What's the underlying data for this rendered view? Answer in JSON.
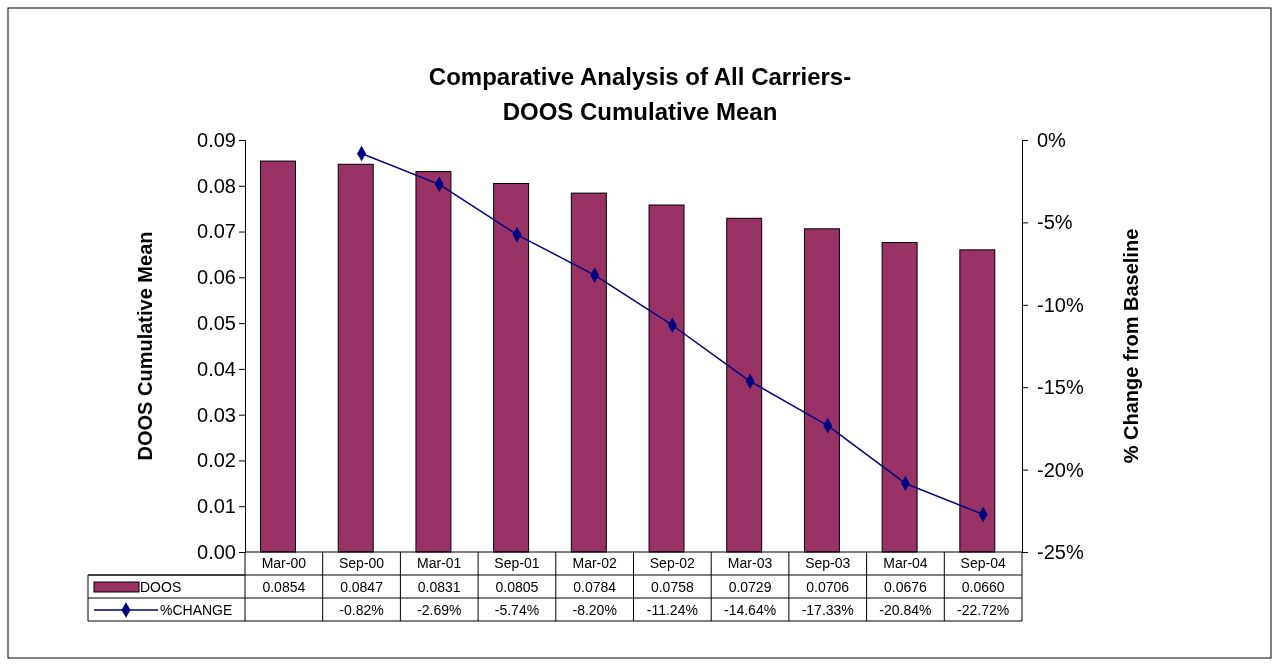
{
  "chart_data": {
    "type": "bar",
    "title": "Comparative Analysis of All Carriers-\nDOOS Cumulative Mean",
    "ylabel": "DOOS Cumulative Mean",
    "y2label": "% Change from Baseline",
    "categories": [
      "Mar-00",
      "Sep-00",
      "Mar-01",
      "Sep-01",
      "Mar-02",
      "Sep-02",
      "Mar-03",
      "Sep-03",
      "Mar-04",
      "Sep-04"
    ],
    "series": [
      {
        "name": "DOOS",
        "color": "#993366",
        "values": [
          0.0854,
          0.0847,
          0.0831,
          0.0805,
          0.0784,
          0.0758,
          0.0729,
          0.0706,
          0.0676,
          0.066
        ],
        "value_labels": [
          "0.0854",
          "0.0847",
          "0.0831",
          "0.0805",
          "0.0784",
          "0.0758",
          "0.0729",
          "0.0706",
          "0.0676",
          "0.0660"
        ]
      },
      {
        "name": "%CHANGE",
        "type": "line",
        "axis": "y2",
        "color": "#000080",
        "marker": "diamond",
        "values": [
          null,
          -0.82,
          -2.69,
          -5.74,
          -8.2,
          -11.24,
          -14.64,
          -17.33,
          -20.84,
          -22.72
        ],
        "value_labels": [
          null,
          "-0.82%",
          "-2.69%",
          "-5.74%",
          "-8.20%",
          "-11.24%",
          "-14.64%",
          "-17.33%",
          "-20.84%",
          "-22.72%"
        ]
      }
    ],
    "ylim": [
      0,
      0.09
    ],
    "yticks": [
      {
        "value": 0,
        "label": "0.00"
      },
      {
        "value": 0.01,
        "label": "0.01"
      },
      {
        "value": 0.02,
        "label": "0.02"
      },
      {
        "value": 0.03,
        "label": "0.03"
      },
      {
        "value": 0.04,
        "label": "0.04"
      },
      {
        "value": 0.05,
        "label": "0.05"
      },
      {
        "value": 0.06,
        "label": "0.06"
      },
      {
        "value": 0.07,
        "label": "0.07"
      },
      {
        "value": 0.08,
        "label": "0.08"
      },
      {
        "value": 0.09,
        "label": "0.09"
      }
    ],
    "y2lim": [
      -25,
      0
    ],
    "y2ticks": [
      {
        "value": -25,
        "label": "-25%"
      },
      {
        "value": -20,
        "label": "-20%"
      },
      {
        "value": -15,
        "label": "-15%"
      },
      {
        "value": -10,
        "label": "-10%"
      },
      {
        "value": -5,
        "label": "-5%"
      },
      {
        "value": 0,
        "label": "0%"
      }
    ],
    "legend": "bottom",
    "grid": false
  }
}
